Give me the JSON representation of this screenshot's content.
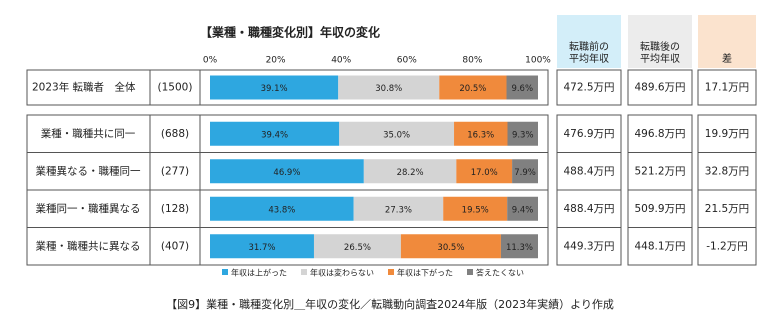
{
  "chart_data": {
    "type": "stacked-barh",
    "title": "【業種・職種変化別】年収の変化",
    "categories": [
      "2023年 転職者　全体",
      "業種・職種共に同一",
      "業種異なる・職種同一",
      "業種同一・職種異なる",
      "業種・職種共に異なる"
    ],
    "counts": [
      "(1500)",
      "(688)",
      "(277)",
      "(128)",
      "(407)"
    ],
    "xlim": [
      0,
      100
    ],
    "xticks": [
      {
        "value": 0,
        "label": "0%"
      },
      {
        "value": 20,
        "label": "20%"
      },
      {
        "value": 40,
        "label": "40%"
      },
      {
        "value": 60,
        "label": "60%"
      },
      {
        "value": 80,
        "label": "80%"
      },
      {
        "value": 100,
        "label": "100%"
      }
    ],
    "series": [
      {
        "name": "年収は上がった",
        "color": "#2ea7e0",
        "values": [
          39.1,
          39.4,
          46.9,
          43.8,
          31.7
        ],
        "value_labels": [
          "39.1%",
          "39.4%",
          "46.9%",
          "43.8%",
          "31.7%"
        ]
      },
      {
        "name": "年収は変わらない",
        "color": "#d4d4d4",
        "values": [
          30.8,
          35.0,
          28.2,
          27.3,
          26.5
        ],
        "value_labels": [
          "30.8%",
          "35.0%",
          "28.2%",
          "27.3%",
          "26.5%"
        ]
      },
      {
        "name": "年収は下がった",
        "color": "#f08a3c",
        "values": [
          20.5,
          16.3,
          17.0,
          19.5,
          30.5
        ],
        "value_labels": [
          "20.5%",
          "16.3%",
          "17.0%",
          "19.5%",
          "30.5%"
        ]
      },
      {
        "name": "答えたくない",
        "color": "#808080",
        "values": [
          9.6,
          9.3,
          7.9,
          9.4,
          11.3
        ],
        "value_labels": [
          "9.6%",
          "9.3%",
          "7.9%",
          "9.4%",
          "11.3%"
        ]
      }
    ]
  },
  "table": {
    "headers": [
      [
        "転職前の",
        "平均年収"
      ],
      [
        "転職後の",
        "平均年収"
      ],
      [
        "差"
      ]
    ],
    "header_colors": [
      "#d3eef9",
      "#ececec",
      "#fbe3ce"
    ],
    "rows": [
      [
        "472.5万円",
        "489.6万円",
        "17.1万円"
      ],
      [
        "476.9万円",
        "496.8万円",
        "19.9万円"
      ],
      [
        "488.4万円",
        "521.2万円",
        "32.8万円"
      ],
      [
        "488.4万円",
        "509.9万円",
        "21.5万円"
      ],
      [
        "449.3万円",
        "448.1万円",
        "-1.2万円"
      ]
    ]
  },
  "caption": "【図9】業種・職種変化別＿年収の変化／転職動向調査2024年版（2023年実績）より作成"
}
